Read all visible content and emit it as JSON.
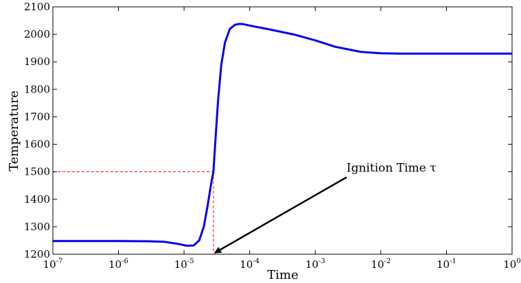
{
  "chart_data": {
    "type": "line",
    "title": "",
    "xlabel": "Time",
    "ylabel": "Temperature",
    "xscale": "log",
    "xlim": [
      1e-07,
      1
    ],
    "ylim": [
      1200,
      2100
    ],
    "grid": false,
    "legend": "none",
    "x_ticks": [
      {
        "value": 1e-07,
        "base": "10",
        "exp": "-7"
      },
      {
        "value": 1e-06,
        "base": "10",
        "exp": "-6"
      },
      {
        "value": 1e-05,
        "base": "10",
        "exp": "-5"
      },
      {
        "value": 0.0001,
        "base": "10",
        "exp": "-4"
      },
      {
        "value": 0.001,
        "base": "10",
        "exp": "-3"
      },
      {
        "value": 0.01,
        "base": "10",
        "exp": "-2"
      },
      {
        "value": 0.1,
        "base": "10",
        "exp": "-1"
      },
      {
        "value": 1,
        "base": "10",
        "exp": "0"
      }
    ],
    "y_ticks": [
      1200,
      1300,
      1400,
      1500,
      1600,
      1700,
      1800,
      1900,
      2000,
      2100
    ],
    "series": [
      {
        "color": "#0000ee",
        "x": [
          1e-07,
          3e-07,
          1e-06,
          3e-06,
          5e-06,
          8e-06,
          1.1e-05,
          1.4e-05,
          1.7e-05,
          2e-05,
          2.3e-05,
          2.6e-05,
          2.8e-05,
          3e-05,
          3.3e-05,
          3.7e-05,
          4.2e-05,
          5e-05,
          6e-05,
          7e-05,
          8e-05,
          0.0001,
          0.0002,
          0.0005,
          0.001,
          0.002,
          0.005,
          0.01,
          0.02,
          0.1,
          1
        ],
        "y": [
          1248,
          1248,
          1248,
          1247,
          1245,
          1238,
          1231,
          1232,
          1250,
          1300,
          1380,
          1460,
          1500,
          1610,
          1760,
          1890,
          1970,
          2020,
          2035,
          2038,
          2037,
          2032,
          2018,
          1998,
          1978,
          1955,
          1936,
          1931,
          1930,
          1930,
          1930
        ]
      }
    ],
    "reference_lines": {
      "color": "#ff0000",
      "y_value": 1500,
      "x_value": 2.8e-05
    },
    "annotation": {
      "text": "Ignition Time τ",
      "point": [
        2.8e-05,
        1200
      ],
      "text_position": [
        0.003,
        1500
      ]
    }
  }
}
